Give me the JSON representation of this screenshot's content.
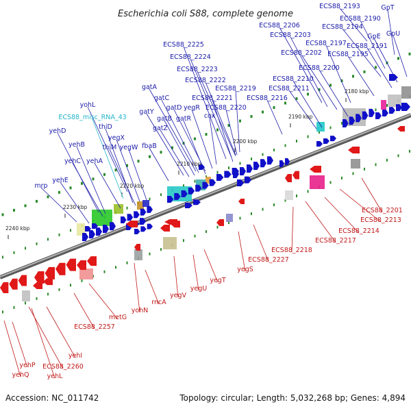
{
  "title": "Escherichia coli S88, complete genome",
  "footer": {
    "accession": "Accession: NC_011742",
    "summary": "Topology: circular; Length: 5,032,268 bp; Genes: 4,894"
  },
  "colors": {
    "forward_gene": "#1010c8",
    "reverse_gene": "#e01818",
    "forward_label": "#1a1aa8",
    "reverse_label": "#c01818",
    "rna_label": "#22b5c8",
    "backbone": "#8a8a8a",
    "tick": "#2a8a2a"
  },
  "tick_labels": [
    {
      "text": "2180 kbp"
    },
    {
      "text": "2190 kbp"
    },
    {
      "text": "2200 kbp"
    },
    {
      "text": "2210 kbp"
    },
    {
      "text": "2220 kbp"
    },
    {
      "text": "2230 kbp"
    },
    {
      "text": "2240 kbp"
    }
  ],
  "forward_labels": [
    {
      "text": "ECS88_2193"
    },
    {
      "text": "GpT"
    },
    {
      "text": "ECS88_2190"
    },
    {
      "text": "ECS88_2206"
    },
    {
      "text": "ECS88_2194"
    },
    {
      "text": "ECS88_2203"
    },
    {
      "text": "GpE"
    },
    {
      "text": "GpU"
    },
    {
      "text": "ECS88_2197"
    },
    {
      "text": "ECS88_2191"
    },
    {
      "text": "ECS88_2202"
    },
    {
      "text": "ECS88_2195"
    },
    {
      "text": "ECS88_2225"
    },
    {
      "text": "ECS88_2224"
    },
    {
      "text": "ECS88_2200"
    },
    {
      "text": "ECS88_2223"
    },
    {
      "text": "ECS88_2210"
    },
    {
      "text": "ECS88_2222"
    },
    {
      "text": "ECS88_2211"
    },
    {
      "text": "gatA"
    },
    {
      "text": "ECS88_2219"
    },
    {
      "text": "ECS88_2221"
    },
    {
      "text": "ECS88_2216"
    },
    {
      "text": "gatC"
    },
    {
      "text": "yohL"
    },
    {
      "text": "gatD"
    },
    {
      "text": "yegR"
    },
    {
      "text": "ECS88_2220"
    },
    {
      "text": "gatY"
    },
    {
      "text": "cox"
    },
    {
      "text": "gatB"
    },
    {
      "text": "gatR"
    },
    {
      "text": "thiD"
    },
    {
      "text": "yegX"
    },
    {
      "text": "yehD"
    },
    {
      "text": "gatZ"
    },
    {
      "text": "yehB"
    },
    {
      "text": "fbaB"
    },
    {
      "text": "thiM"
    },
    {
      "text": "yegW"
    },
    {
      "text": "yehC"
    },
    {
      "text": "yehA"
    },
    {
      "text": "yehE"
    },
    {
      "text": "mrp"
    }
  ],
  "rna_labels": [
    {
      "text": "ECS88_misc_RNA_43"
    }
  ],
  "reverse_labels": [
    {
      "text": "ECS88_2201"
    },
    {
      "text": "ECS88_2213"
    },
    {
      "text": "ECS88_2214"
    },
    {
      "text": "ECS88_2217"
    },
    {
      "text": "ECS88_2218"
    },
    {
      "text": "ECS88_2227"
    },
    {
      "text": "yegS"
    },
    {
      "text": "yegT"
    },
    {
      "text": "yegU"
    },
    {
      "text": "yegV"
    },
    {
      "text": "rncA"
    },
    {
      "text": "yohN"
    },
    {
      "text": "metG"
    },
    {
      "text": "ECS88_2257"
    },
    {
      "text": "yehI"
    },
    {
      "text": "ECS88_2260"
    },
    {
      "text": "yehP"
    },
    {
      "text": "yehL"
    },
    {
      "text": "yehQ"
    }
  ]
}
